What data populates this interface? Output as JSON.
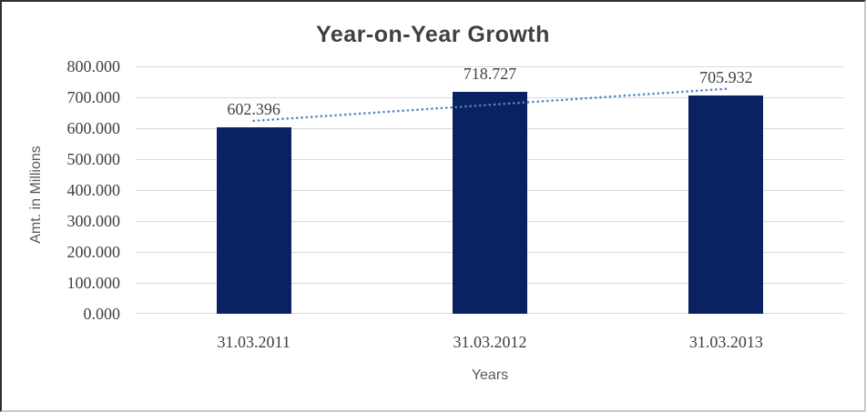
{
  "chart_data": {
    "type": "bar",
    "title": "Year-on-Year Growth",
    "xlabel": "Years",
    "ylabel": "Amt. in Millions",
    "categories": [
      "31.03.2011",
      "31.03.2012",
      "31.03.2013"
    ],
    "series": [
      {
        "name": "Amt. in Millions",
        "values": [
          602.396,
          718.727,
          705.932
        ],
        "data_labels": [
          "602.396",
          "718.727",
          "705.932"
        ]
      }
    ],
    "ylim": [
      0,
      800
    ],
    "ytick_interval": 100,
    "ytick_labels": [
      "800.000",
      "700.000",
      "600.000",
      "500.000",
      "400.000",
      "300.000",
      "200.000",
      "100.000",
      "0.000"
    ],
    "grid": true,
    "legend_position": "none",
    "trendline": {
      "kind": "linear",
      "style": "dotted",
      "series_index": 0
    },
    "colors": {
      "bar": "#0a2262",
      "trendline": "#4e86c4",
      "gridline": "#d9d9d9",
      "tick_text": "#3f3f3f",
      "data_label_text": "#3f3f3f",
      "axis_title_text": "#595959",
      "title_text": "#404040"
    }
  }
}
